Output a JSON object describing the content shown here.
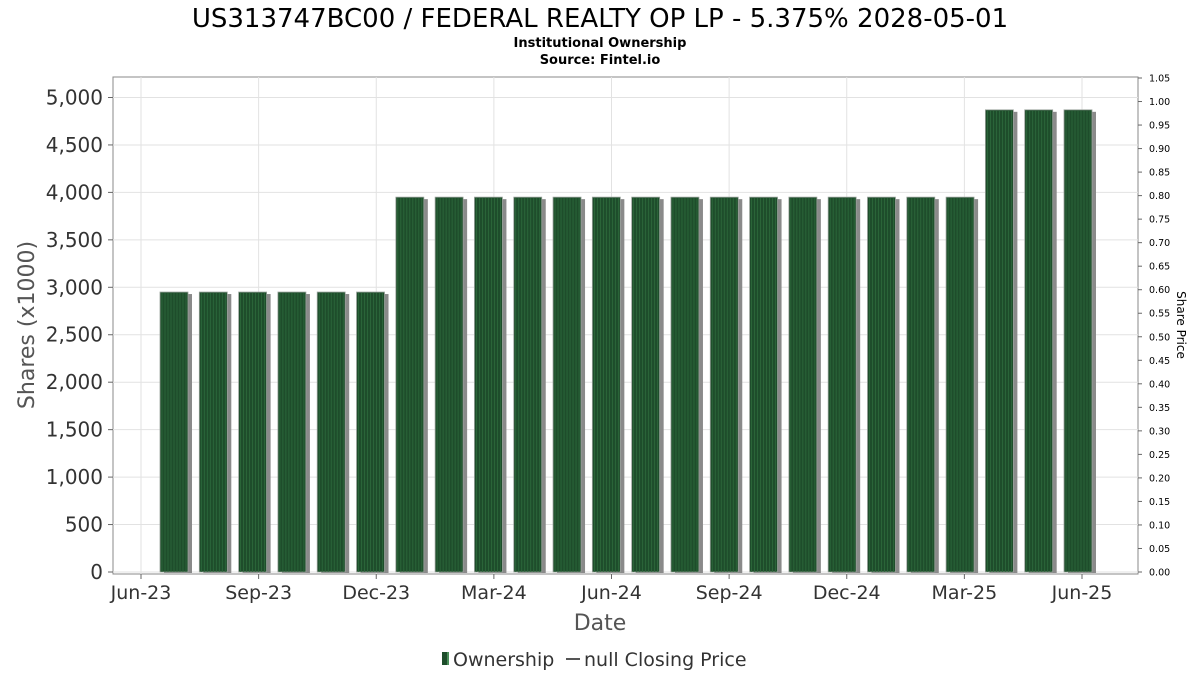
{
  "chart_data": {
    "type": "bar",
    "title": "US313747BC00 / FEDERAL REALTY OP LP - 5.375% 2028-05-01",
    "subtitle": "Institutional Ownership",
    "source": "Source: Fintel.io",
    "xlabel": "Date",
    "ylabel": "Shares (x1000)",
    "ylabel_right": "Share Price",
    "ylim": [
      0,
      5100
    ],
    "ylim_right": [
      0,
      1.05
    ],
    "grid": true,
    "x_tick_labels": [
      "Jun-23",
      "Sep-23",
      "Dec-23",
      "Mar-24",
      "Jun-24",
      "Sep-24",
      "Dec-24",
      "Mar-25",
      "Jun-25"
    ],
    "y_tick_labels": [
      "0",
      "500",
      "1,000",
      "1,500",
      "2,000",
      "2,500",
      "3,000",
      "3,500",
      "4,000",
      "4,500",
      "5,000"
    ],
    "y_ticks": [
      0,
      500,
      1000,
      1500,
      2000,
      2500,
      3000,
      3500,
      4000,
      4500,
      5000
    ],
    "y_right_tick_labels": [
      "0.00",
      "0.05",
      "0.10",
      "0.15",
      "0.20",
      "0.25",
      "0.30",
      "0.35",
      "0.40",
      "0.45",
      "0.50",
      "0.55",
      "0.60",
      "0.65",
      "0.70",
      "0.75",
      "0.80",
      "0.85",
      "0.90",
      "0.95",
      "1.00",
      "1.05"
    ],
    "y_right_ticks": [
      0,
      0.05,
      0.1,
      0.15,
      0.2,
      0.25,
      0.3,
      0.35,
      0.4,
      0.45,
      0.5,
      0.55,
      0.6,
      0.65,
      0.7,
      0.75,
      0.8,
      0.85,
      0.9,
      0.95,
      1.0,
      1.05
    ],
    "series": [
      {
        "name": "Ownership",
        "color": "#1e4d2b",
        "values": [
          2950,
          2950,
          2950,
          2950,
          2950,
          2950,
          3950,
          3950,
          3950,
          3950,
          3950,
          3950,
          3950,
          3950,
          3950,
          3950,
          3950,
          3950,
          3950,
          3950,
          3950,
          4870,
          4870,
          4870
        ]
      }
    ],
    "legend": {
      "position": "bottom-center",
      "items": [
        {
          "label": "Ownership",
          "marker": "bar",
          "color": "#1e4d2b"
        },
        {
          "label": "null Closing Price",
          "marker": "line",
          "color": "#555555"
        }
      ]
    }
  }
}
